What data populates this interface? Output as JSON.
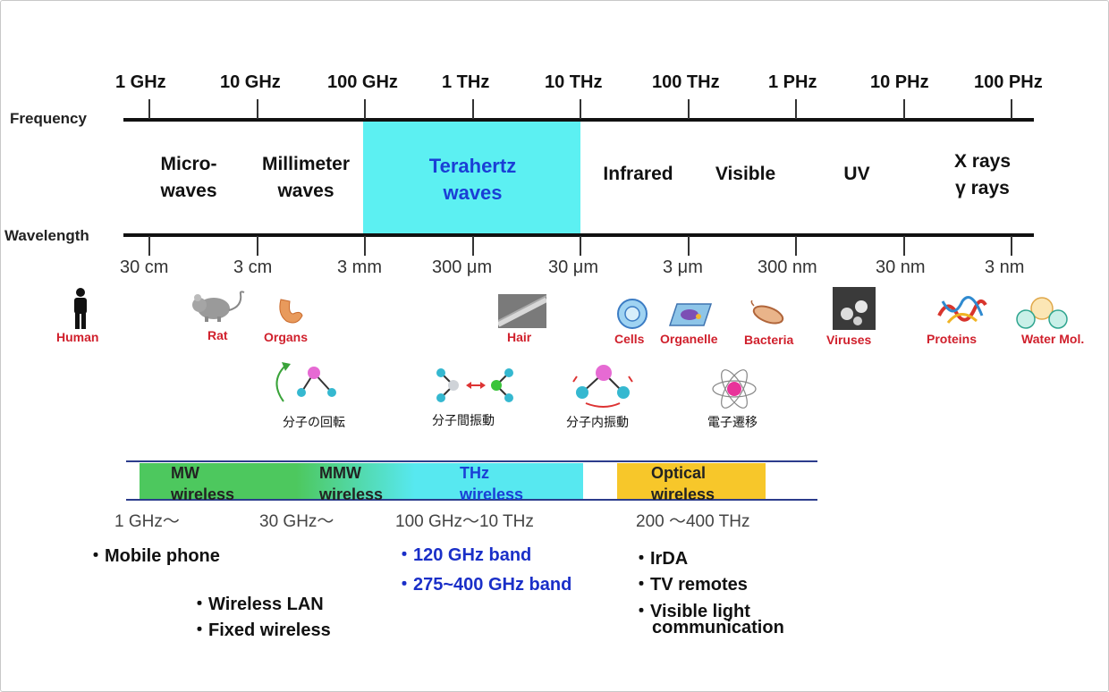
{
  "axis_titles": {
    "frequency": "Frequency",
    "wavelength": "Wavelength"
  },
  "frequencies": [
    "1 GHz",
    "10 GHz",
    "100 GHz",
    "1 THz",
    "10 THz",
    "100 THz",
    "1 PHz",
    "10 PHz",
    "100 PHz"
  ],
  "wavelengths": [
    "30 cm",
    "3 cm",
    "3 mm",
    "300 μm",
    "30 μm",
    "3 μm",
    "300 nm",
    "30 nm",
    "3 nm"
  ],
  "regions": [
    {
      "label": "Micro-\nwaves"
    },
    {
      "label": "Millimeter\nwaves"
    },
    {
      "label": "Terahertz\nwaves"
    },
    {
      "label": "Infrared"
    },
    {
      "label": "Visible"
    },
    {
      "label": "UV"
    },
    {
      "label": "X rays\nγ rays"
    }
  ],
  "objects": [
    "Human",
    "Rat",
    "Organs",
    "Hair",
    "Cells",
    "Organelle",
    "Bacteria",
    "Viruses",
    "Proteins",
    "Water Mol."
  ],
  "molecular": [
    "分子の回転",
    "分子間振動",
    "分子内振動",
    "電子遷移"
  ],
  "bands": [
    {
      "label": "MW\nwireless",
      "range": "1 GHz～"
    },
    {
      "label": "MMW\nwireless",
      "range": "30 GHz～"
    },
    {
      "label": "THz\nwireless",
      "range": "100 GHz～10 THz"
    },
    {
      "label": "Optical\nwireless",
      "range": "200 ～400 THz"
    }
  ],
  "applications": {
    "mw": [
      "・Mobile phone"
    ],
    "mmw": [
      "・Wireless LAN",
      "・Fixed wireless"
    ],
    "thz": [
      "・120 GHz band",
      "・275~400 GHz band"
    ],
    "optical": [
      "・IrDA",
      "・TV remotes",
      "・Visible light",
      "communication"
    ]
  },
  "colors": {
    "thz_region": "#5cf0f2",
    "mw_band": "#4dc85e",
    "thz_band": "#57e8f0",
    "optical_band": "#f7c72a",
    "thz_text": "#1a3fd6",
    "object_label": "#d0202c"
  }
}
